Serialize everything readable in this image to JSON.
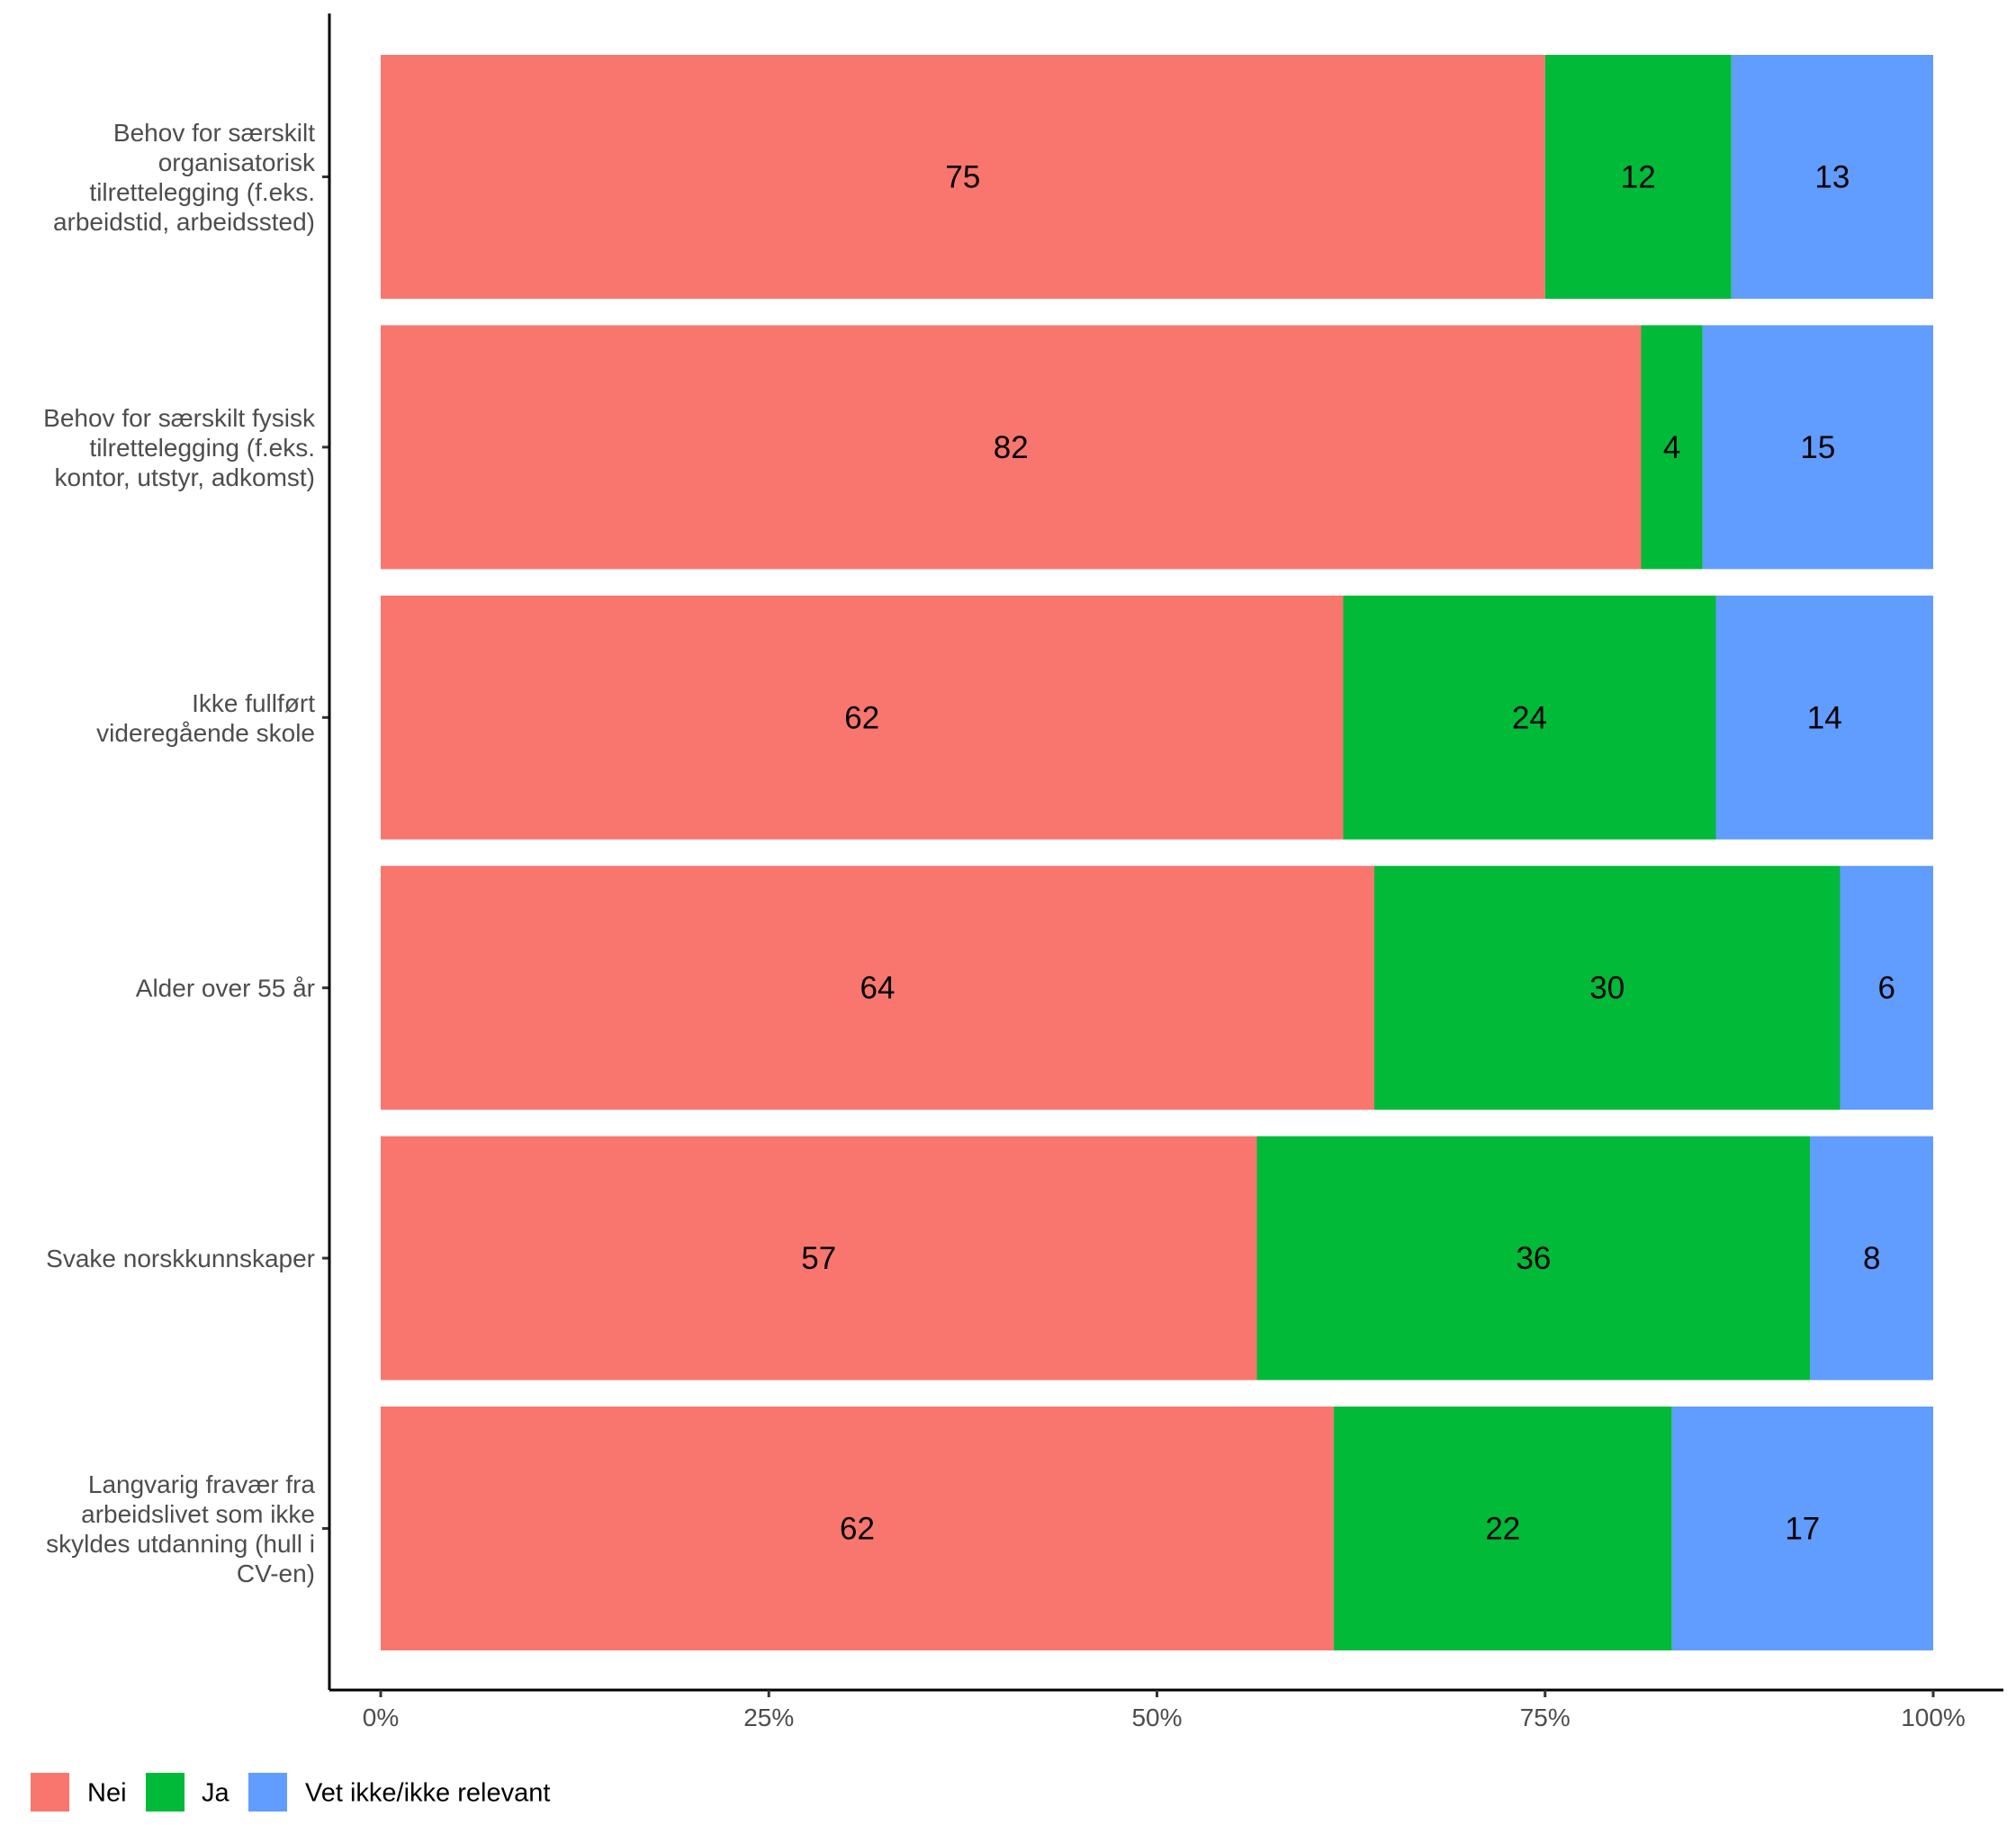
{
  "chart_data": {
    "type": "bar",
    "orientation": "horizontal",
    "stacked": true,
    "normalized_to_percent": true,
    "categories": [
      "Behov for særskilt organisatorisk tilrettelegging (f.eks. arbeidstid, arbeidssted)",
      "Behov for særskilt fysisk tilrettelegging (f.eks. kontor, utstyr, adkomst)",
      "Ikke fullført videregående skole",
      "Alder over 55 år",
      "Svake norskkunnskaper",
      "Langvarig fravær fra arbeidslivet som ikke skyldes utdanning (hull i CV-en)"
    ],
    "category_lines": [
      [
        "Behov for særskilt",
        "organisatorisk",
        "tilrettelegging (f.eks.",
        "arbeidstid, arbeidssted)"
      ],
      [
        "Behov for særskilt fysisk",
        "tilrettelegging (f.eks.",
        "kontor, utstyr, adkomst)"
      ],
      [
        "Ikke fullført",
        "videregående skole"
      ],
      [
        "Alder over 55 år"
      ],
      [
        "Svake norskkunnskaper"
      ],
      [
        "Langvarig fravær fra",
        "arbeidslivet som ikke",
        "skyldes utdanning (hull i",
        "CV-en)"
      ]
    ],
    "series": [
      {
        "name": "Nei",
        "color": "#F8766D",
        "values": [
          75,
          82,
          62,
          64,
          57,
          62
        ]
      },
      {
        "name": "Ja",
        "color": "#00BA38",
        "values": [
          12,
          4,
          24,
          30,
          36,
          22
        ]
      },
      {
        "name": "Vet ikke/ikke relevant",
        "color": "#619CFF",
        "values": [
          13,
          15,
          14,
          6,
          8,
          17
        ]
      }
    ],
    "xlim": [
      0,
      100
    ],
    "x_ticks": [
      0,
      25,
      50,
      75,
      100
    ],
    "x_tick_labels": [
      "0%",
      "25%",
      "50%",
      "75%",
      "100%"
    ],
    "xlabel": "",
    "ylabel": "",
    "title": "",
    "legend_position": "bottom-left",
    "grid": false
  }
}
